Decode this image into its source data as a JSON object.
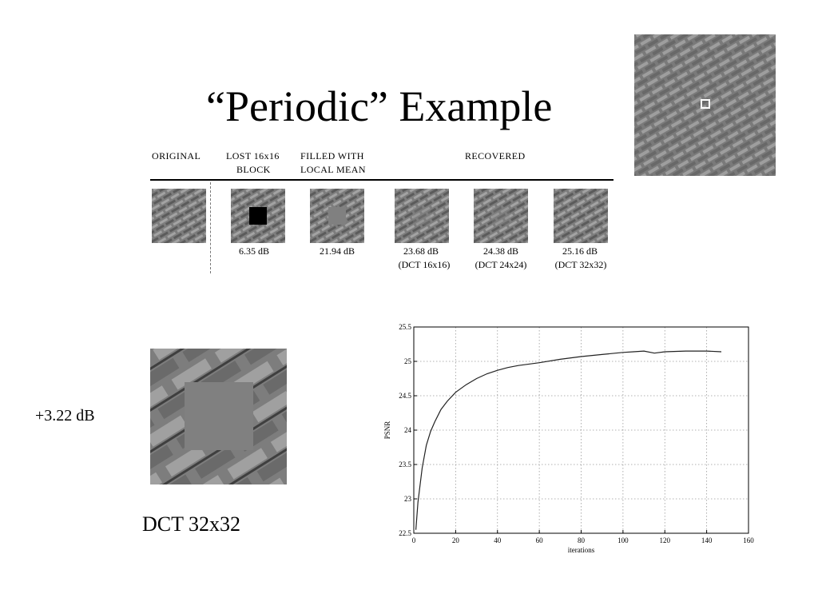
{
  "slide": {
    "title": "“Periodic” Example"
  },
  "table": {
    "headers": {
      "original": "ORIGINAL",
      "lost_line1": "LOST 16x16",
      "lost_line2": "BLOCK",
      "filled_line1": "FILLED WITH",
      "filled_line2": "LOCAL MEAN",
      "recovered": "RECOVERED"
    },
    "items": [
      {
        "id": "original",
        "db": "",
        "method": "",
        "patch": "none"
      },
      {
        "id": "lost",
        "db": "6.35 dB",
        "method": "",
        "patch": "black"
      },
      {
        "id": "filled",
        "db": "21.94 dB",
        "method": "",
        "patch": "mean"
      },
      {
        "id": "dct16",
        "db": "23.68 dB",
        "method": "(DCT 16x16)",
        "patch": "faint"
      },
      {
        "id": "dct24",
        "db": "24.38 dB",
        "method": "(DCT 24x24)",
        "patch": "faint"
      },
      {
        "id": "dct32",
        "db": "25.16 dB",
        "method": "(DCT 32x32)",
        "patch": "none"
      }
    ]
  },
  "zoom": {
    "gain_label": "+3.22 dB",
    "caption": "DCT 32x32"
  },
  "colors": {
    "texture_dark": "#5b5b5b",
    "texture_light": "#a3a3a3",
    "texture_base": "#7d7d7d",
    "mean_fill": "#808080"
  },
  "chart_data": {
    "type": "line",
    "xlabel": "iterations",
    "ylabel": "PSNR",
    "xlim": [
      0,
      160
    ],
    "ylim": [
      22.5,
      25.5
    ],
    "xticks": [
      0,
      20,
      40,
      60,
      80,
      100,
      120,
      140,
      160
    ],
    "yticks": [
      22.5,
      23,
      23.5,
      24,
      24.5,
      25,
      25.5
    ],
    "grid": true,
    "series": [
      {
        "x": [
          1,
          2,
          4,
          6,
          8,
          10,
          13,
          16,
          20,
          25,
          30,
          35,
          40,
          45,
          50,
          60,
          70,
          80,
          90,
          100,
          105,
          110,
          115,
          120,
          130,
          140,
          147
        ],
        "y": [
          22.55,
          22.95,
          23.45,
          23.78,
          23.98,
          24.12,
          24.3,
          24.42,
          24.55,
          24.66,
          24.75,
          24.82,
          24.87,
          24.91,
          24.94,
          24.98,
          25.03,
          25.07,
          25.1,
          25.13,
          25.14,
          25.15,
          25.12,
          25.14,
          25.15,
          25.15,
          25.14
        ]
      }
    ]
  }
}
